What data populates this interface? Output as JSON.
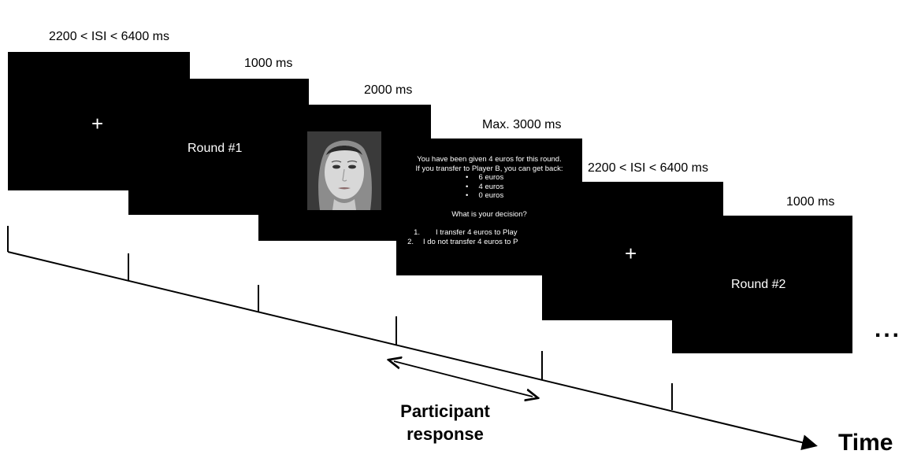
{
  "durations": {
    "isi_1": "2200 < ISI < 6400 ms",
    "round1_label_dur": "1000 ms",
    "face_dur": "2000 ms",
    "decision_dur": "Max. 3000 ms",
    "isi_2": "2200 < ISI < 6400 ms",
    "round2_label_dur": "1000 ms"
  },
  "screens": {
    "fixation_1": "+",
    "round_1": "Round #1",
    "fixation_2": "+",
    "round_2": "Round #2"
  },
  "decision_screen": {
    "line1": "You have been given 4 euros for this round.",
    "line2": "If you transfer to Player B, you can get back:",
    "bullets": [
      "6 euros",
      "4 euros",
      "0 euros"
    ],
    "question": "What is your decision?",
    "option1_num": "1.",
    "option1_text": "I transfer 4 euros to Play",
    "option2_num": "2.",
    "option2_text": "I do not transfer 4 euros to P"
  },
  "response_label": [
    "Participant",
    "response"
  ],
  "time_label": "Time",
  "continuation": "..."
}
